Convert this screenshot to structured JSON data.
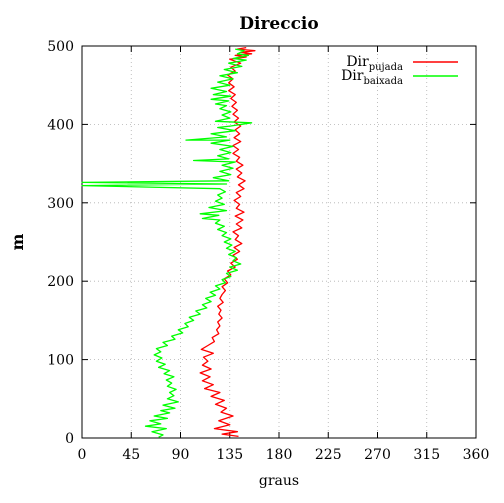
{
  "chart_data": {
    "type": "line",
    "title": "Direccio",
    "xlabel": "graus",
    "ylabel": "m",
    "xlim": [
      0,
      360
    ],
    "ylim": [
      0,
      500
    ],
    "xticks": [
      "0",
      "45",
      "90",
      "135",
      "180",
      "225",
      "270",
      "315",
      "360"
    ],
    "yticks": [
      "0",
      "100",
      "200",
      "300",
      "400",
      "500"
    ],
    "grid": true,
    "legend_position": "top-right",
    "series": [
      {
        "name_main": "Dir",
        "name_sub": "pujada",
        "color": "#ff0000",
        "points": [
          [
            143,
            2
          ],
          [
            128,
            5
          ],
          [
            142,
            8
          ],
          [
            121,
            12
          ],
          [
            135,
            17
          ],
          [
            125,
            22
          ],
          [
            138,
            28
          ],
          [
            127,
            33
          ],
          [
            132,
            38
          ],
          [
            122,
            43
          ],
          [
            130,
            48
          ],
          [
            118,
            53
          ],
          [
            126,
            58
          ],
          [
            112,
            63
          ],
          [
            120,
            68
          ],
          [
            110,
            73
          ],
          [
            117,
            78
          ],
          [
            108,
            83
          ],
          [
            118,
            88
          ],
          [
            110,
            93
          ],
          [
            115,
            98
          ],
          [
            111,
            103
          ],
          [
            120,
            108
          ],
          [
            109,
            113
          ],
          [
            115,
            118
          ],
          [
            121,
            123
          ],
          [
            119,
            128
          ],
          [
            125,
            133
          ],
          [
            123,
            138
          ],
          [
            126,
            143
          ],
          [
            124,
            148
          ],
          [
            128,
            153
          ],
          [
            125,
            158
          ],
          [
            127,
            163
          ],
          [
            124,
            168
          ],
          [
            129,
            173
          ],
          [
            126,
            178
          ],
          [
            128,
            183
          ],
          [
            131,
            188
          ],
          [
            128,
            193
          ],
          [
            133,
            198
          ],
          [
            130,
            203
          ],
          [
            136,
            208
          ],
          [
            133,
            213
          ],
          [
            140,
            218
          ],
          [
            136,
            223
          ],
          [
            142,
            228
          ],
          [
            138,
            233
          ],
          [
            144,
            238
          ],
          [
            139,
            243
          ],
          [
            146,
            248
          ],
          [
            140,
            253
          ],
          [
            143,
            258
          ],
          [
            138,
            263
          ],
          [
            146,
            268
          ],
          [
            141,
            273
          ],
          [
            147,
            278
          ],
          [
            140,
            283
          ],
          [
            148,
            288
          ],
          [
            141,
            293
          ],
          [
            144,
            298
          ],
          [
            139,
            303
          ],
          [
            145,
            308
          ],
          [
            141,
            313
          ],
          [
            148,
            318
          ],
          [
            143,
            323
          ],
          [
            149,
            328
          ],
          [
            142,
            333
          ],
          [
            146,
            338
          ],
          [
            141,
            343
          ],
          [
            147,
            348
          ],
          [
            141,
            353
          ],
          [
            144,
            358
          ],
          [
            138,
            363
          ],
          [
            143,
            368
          ],
          [
            138,
            373
          ],
          [
            145,
            378
          ],
          [
            139,
            383
          ],
          [
            144,
            388
          ],
          [
            140,
            393
          ],
          [
            145,
            398
          ],
          [
            139,
            403
          ],
          [
            143,
            408
          ],
          [
            138,
            413
          ],
          [
            142,
            418
          ],
          [
            137,
            423
          ],
          [
            141,
            428
          ],
          [
            136,
            433
          ],
          [
            140,
            438
          ],
          [
            134,
            443
          ],
          [
            139,
            448
          ],
          [
            134,
            453
          ],
          [
            138,
            458
          ],
          [
            133,
            463
          ],
          [
            140,
            468
          ],
          [
            136,
            473
          ],
          [
            145,
            478
          ],
          [
            135,
            483
          ],
          [
            150,
            486
          ],
          [
            140,
            488
          ],
          [
            155,
            490
          ],
          [
            145,
            492
          ],
          [
            158,
            494
          ],
          [
            142,
            496
          ],
          [
            150,
            498
          ]
        ]
      },
      {
        "name_main": "Dir",
        "name_sub": "baixada",
        "color": "#00ff00",
        "points": [
          [
            70,
            1
          ],
          [
            74,
            4
          ],
          [
            64,
            8
          ],
          [
            77,
            12
          ],
          [
            58,
            15
          ],
          [
            72,
            18
          ],
          [
            62,
            22
          ],
          [
            78,
            25
          ],
          [
            66,
            28
          ],
          [
            80,
            32
          ],
          [
            72,
            35
          ],
          [
            85,
            38
          ],
          [
            74,
            42
          ],
          [
            88,
            46
          ],
          [
            78,
            50
          ],
          [
            84,
            54
          ],
          [
            80,
            58
          ],
          [
            86,
            62
          ],
          [
            78,
            66
          ],
          [
            82,
            70
          ],
          [
            77,
            74
          ],
          [
            84,
            78
          ],
          [
            75,
            82
          ],
          [
            80,
            86
          ],
          [
            70,
            90
          ],
          [
            76,
            94
          ],
          [
            68,
            98
          ],
          [
            73,
            102
          ],
          [
            66,
            106
          ],
          [
            72,
            110
          ],
          [
            68,
            114
          ],
          [
            78,
            118
          ],
          [
            74,
            122
          ],
          [
            85,
            126
          ],
          [
            82,
            130
          ],
          [
            92,
            134
          ],
          [
            88,
            138
          ],
          [
            97,
            142
          ],
          [
            94,
            146
          ],
          [
            102,
            150
          ],
          [
            98,
            154
          ],
          [
            108,
            158
          ],
          [
            104,
            162
          ],
          [
            114,
            166
          ],
          [
            110,
            170
          ],
          [
            118,
            174
          ],
          [
            113,
            178
          ],
          [
            122,
            182
          ],
          [
            117,
            186
          ],
          [
            126,
            190
          ],
          [
            122,
            194
          ],
          [
            131,
            198
          ],
          [
            128,
            202
          ],
          [
            136,
            206
          ],
          [
            132,
            210
          ],
          [
            142,
            214
          ],
          [
            135,
            218
          ],
          [
            145,
            222
          ],
          [
            138,
            226
          ],
          [
            141,
            230
          ],
          [
            134,
            234
          ],
          [
            140,
            238
          ],
          [
            132,
            242
          ],
          [
            137,
            246
          ],
          [
            130,
            250
          ],
          [
            136,
            254
          ],
          [
            128,
            258
          ],
          [
            132,
            262
          ],
          [
            124,
            266
          ],
          [
            130,
            270
          ],
          [
            122,
            274
          ],
          [
            126,
            278
          ],
          [
            110,
            280
          ],
          [
            125,
            284
          ],
          [
            108,
            286
          ],
          [
            132,
            290
          ],
          [
            116,
            294
          ],
          [
            130,
            298
          ],
          [
            122,
            302
          ],
          [
            128,
            306
          ],
          [
            124,
            310
          ],
          [
            131,
            314
          ],
          [
            126,
            318
          ],
          [
            0,
            322
          ],
          [
            132,
            324
          ],
          [
            0,
            326
          ],
          [
            134,
            328
          ],
          [
            120,
            332
          ],
          [
            136,
            336
          ],
          [
            126,
            340
          ],
          [
            138,
            344
          ],
          [
            128,
            348
          ],
          [
            140,
            352
          ],
          [
            102,
            354
          ],
          [
            134,
            356
          ],
          [
            124,
            360
          ],
          [
            136,
            364
          ],
          [
            126,
            368
          ],
          [
            138,
            372
          ],
          [
            118,
            376
          ],
          [
            135,
            380
          ],
          [
            95,
            380
          ],
          [
            132,
            384
          ],
          [
            118,
            388
          ],
          [
            140,
            392
          ],
          [
            124,
            396
          ],
          [
            136,
            398
          ],
          [
            155,
            402
          ],
          [
            122,
            404
          ],
          [
            135,
            408
          ],
          [
            128,
            412
          ],
          [
            136,
            416
          ],
          [
            126,
            420
          ],
          [
            132,
            424
          ],
          [
            122,
            426
          ],
          [
            134,
            430
          ],
          [
            118,
            432
          ],
          [
            136,
            436
          ],
          [
            120,
            438
          ],
          [
            132,
            442
          ],
          [
            118,
            446
          ],
          [
            135,
            450
          ],
          [
            124,
            454
          ],
          [
            138,
            458
          ],
          [
            126,
            462
          ],
          [
            142,
            466
          ],
          [
            130,
            470
          ],
          [
            146,
            474
          ],
          [
            134,
            478
          ],
          [
            150,
            482
          ],
          [
            138,
            484
          ],
          [
            152,
            488
          ],
          [
            142,
            490
          ],
          [
            148,
            494
          ],
          [
            140,
            496
          ]
        ]
      }
    ]
  }
}
